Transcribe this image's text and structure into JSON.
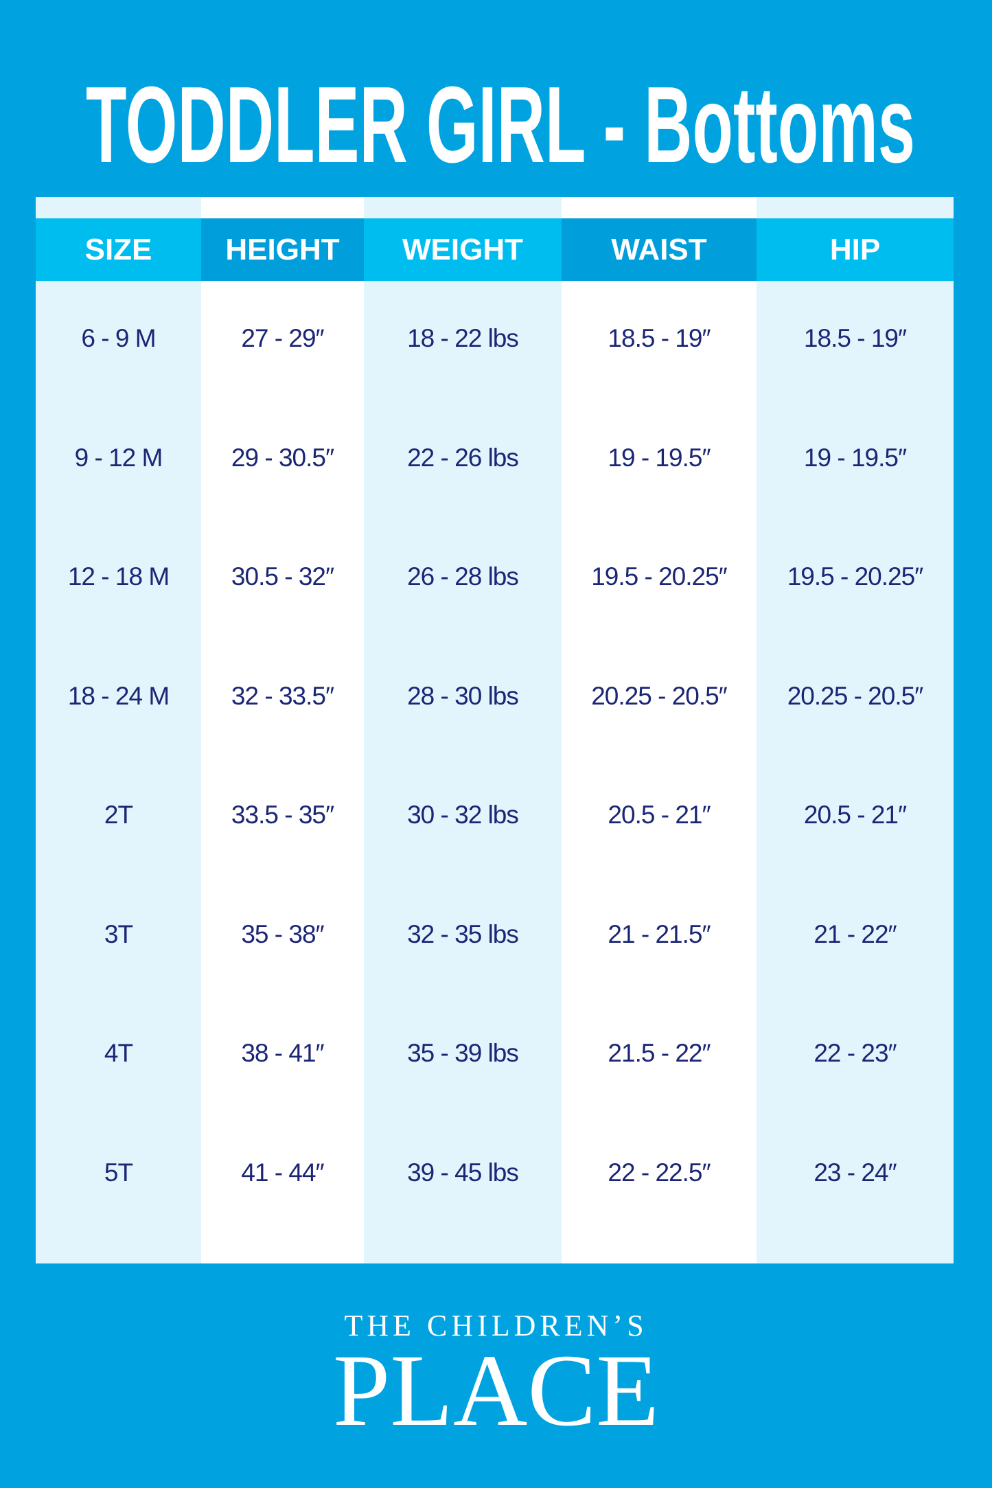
{
  "title": "TODDLER GIRL - Bottoms",
  "colors": {
    "background": "#00a3e0",
    "header_light": "#00bdf0",
    "header_dark": "#009fdc",
    "column_light": "#e3f5fc",
    "text": "#1b2675"
  },
  "headers": [
    "SIZE",
    "HEIGHT",
    "WEIGHT",
    "WAIST",
    "HIP"
  ],
  "rows": [
    [
      "6 - 9 M",
      "27 - 29″",
      "18 - 22 lbs",
      "18.5 - 19″",
      "18.5 - 19″"
    ],
    [
      "9 - 12 M",
      "29 - 30.5″",
      "22 - 26 lbs",
      "19 - 19.5″",
      "19 - 19.5″"
    ],
    [
      "12  - 18 M",
      "30.5 - 32″",
      "26 - 28 lbs",
      "19.5 - 20.25″",
      "19.5 - 20.25″"
    ],
    [
      "18 - 24 M",
      "32 - 33.5″",
      "28 - 30 lbs",
      "20.25 - 20.5″",
      "20.25 - 20.5″"
    ],
    [
      "2T",
      "33.5 - 35″",
      "30 - 32 lbs",
      "20.5 - 21″",
      "20.5 - 21″"
    ],
    [
      "3T",
      "35 - 38″",
      "32 - 35 lbs",
      "21 - 21.5″",
      "21 - 22″"
    ],
    [
      "4T",
      "38 - 41″",
      "35 - 39 lbs",
      "21.5 - 22″",
      "22 - 23″"
    ],
    [
      "5T",
      "41 - 44″",
      "39 - 45 lbs",
      "22 - 22.5″",
      "23 - 24″"
    ]
  ],
  "logo": {
    "line1": "THE CHILDREN’S",
    "line2": "PLACE"
  }
}
